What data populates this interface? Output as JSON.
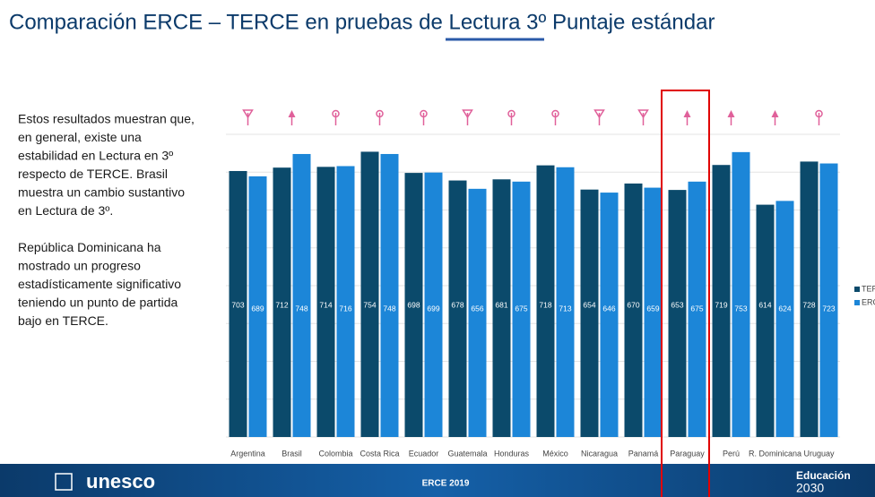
{
  "chart_data": {
    "type": "bar",
    "title": "Comparación ERCE – TERCE en pruebas de Lectura 3º Puntaje estándar",
    "categories": [
      "Argentina",
      "Brasil",
      "Colombia",
      "Costa Rica",
      "Ecuador",
      "Guatemala",
      "Honduras",
      "México",
      "Nicaragua",
      "Panamá",
      "Paraguay",
      "Perú",
      "R. Dominicana",
      "Uruguay"
    ],
    "series": [
      {
        "name": "TERCE",
        "color": "#0b4a6b",
        "values": [
          703,
          712,
          714,
          754,
          698,
          678,
          681,
          718,
          654,
          670,
          653,
          719,
          614,
          728
        ]
      },
      {
        "name": "ERCE",
        "color": "#1c86d8",
        "values": [
          689,
          748,
          716,
          748,
          699,
          656,
          675,
          713,
          646,
          659,
          675,
          753,
          624,
          723
        ]
      }
    ],
    "trend": [
      "down",
      "up",
      "equal",
      "equal",
      "equal",
      "down",
      "equal",
      "equal",
      "down",
      "down",
      "up",
      "up",
      "up",
      "equal"
    ],
    "trend_color": "#e0609a",
    "highlight_index": 10,
    "highlight_color": "#e00000",
    "ylim": [
      0,
      800
    ],
    "yticks": [
      0,
      100,
      200,
      300,
      400,
      500,
      600,
      700,
      800
    ],
    "grid": true,
    "legend": "right"
  },
  "notes": {
    "paragraphs": [
      [
        "Estos resultados muestran que,",
        "en general, existe una",
        "estabilidad en Lectura en 3º",
        "respecto de TERCE. Brasil",
        "muestra un cambio sustantivo",
        "en Lectura de 3º."
      ],
      [
        "República Dominicana ha",
        "mostrado un progreso",
        "estadísticamente significativo",
        "teniendo un punto de partida",
        "bajo en TERCE."
      ]
    ]
  },
  "footer": {
    "logo": "unesco",
    "center": "ERCE 2019",
    "brand_line1": "Educación",
    "brand_line2": "2030"
  }
}
